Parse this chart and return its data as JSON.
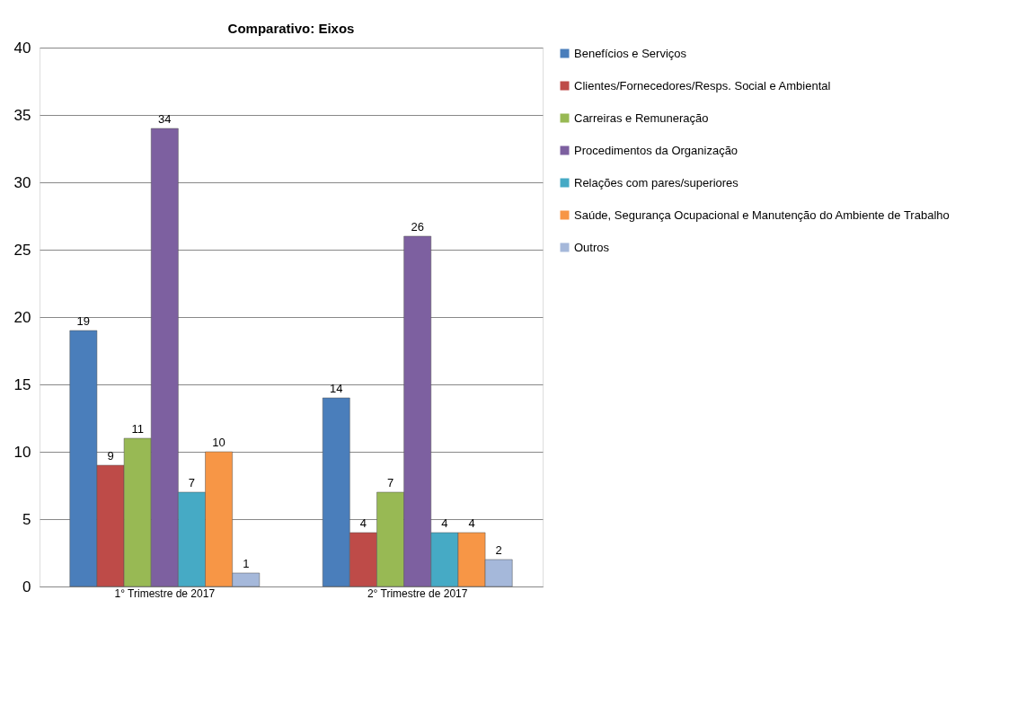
{
  "chart_data": {
    "type": "bar",
    "title": "Comparativo: Eixos",
    "categories": [
      "1° Trimestre de 2017",
      "2° Trimestre de 2017"
    ],
    "series": [
      {
        "name": "Benefícios e Serviços",
        "color": "#4a7ebb",
        "values": [
          19,
          14
        ]
      },
      {
        "name": "Clientes/Fornecedores/Resps. Social e Ambiental",
        "color": "#be4b48",
        "values": [
          9,
          4
        ]
      },
      {
        "name": "Carreiras e Remuneração",
        "color": "#98b954",
        "values": [
          11,
          7
        ]
      },
      {
        "name": "Procedimentos da Organização",
        "color": "#7d60a0",
        "values": [
          34,
          26
        ]
      },
      {
        "name": "Relações com pares/superiores",
        "color": "#46aac5",
        "values": [
          7,
          4
        ]
      },
      {
        "name": "Saúde, Segurança Ocupacional e Manutenção do Ambiente de Trabalho",
        "color": "#f79646",
        "values": [
          10,
          4
        ]
      },
      {
        "name": "Outros",
        "color": "#a5b8da",
        "values": [
          1,
          2
        ]
      }
    ],
    "ylim": [
      0,
      40
    ],
    "yticks": [
      0,
      5,
      10,
      15,
      20,
      25,
      30,
      35,
      40
    ],
    "grid": "y",
    "legend": "right",
    "data_labels": true
  }
}
